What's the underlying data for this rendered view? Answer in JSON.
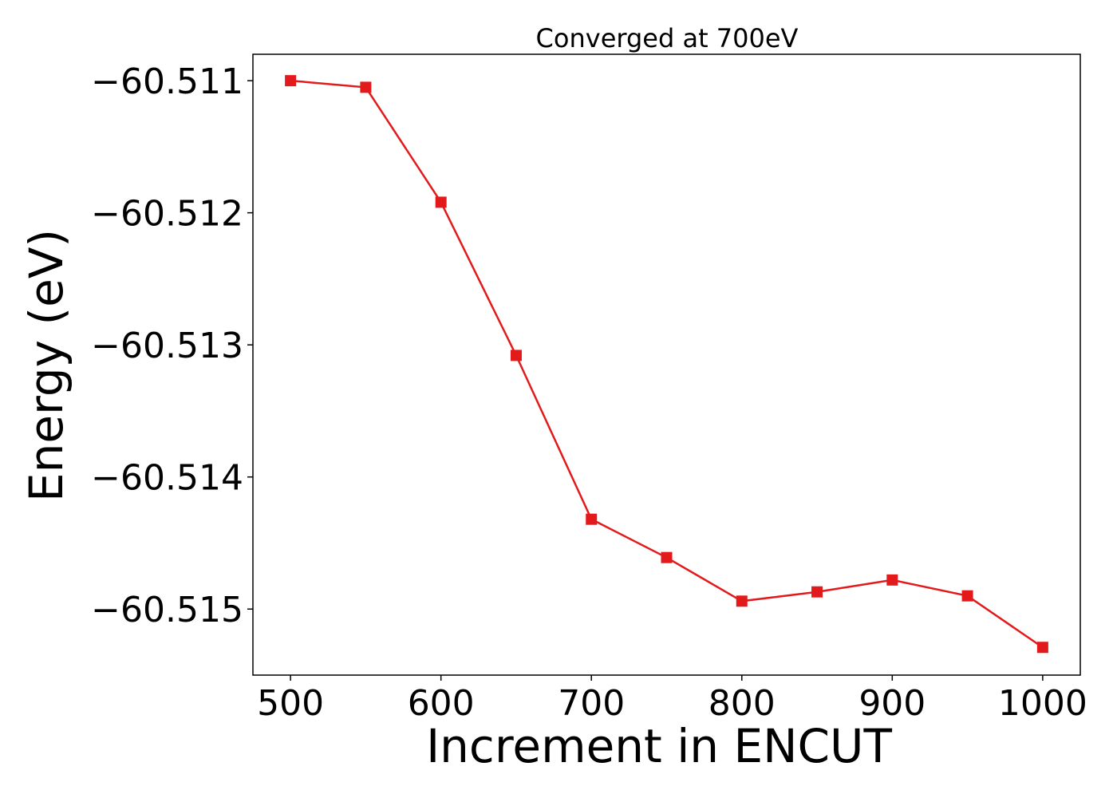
{
  "chart_data": {
    "type": "line",
    "title": "Converged at 700eV",
    "xlabel": "Increment in ENCUT",
    "ylabel": "Energy (eV)",
    "x": [
      500,
      550,
      600,
      650,
      700,
      750,
      800,
      850,
      900,
      950,
      1000
    ],
    "series": [
      {
        "values": [
          -60.511,
          -60.51105,
          -60.51192,
          -60.51308,
          -60.51432,
          -60.51461,
          -60.51494,
          -60.51487,
          -60.51478,
          -60.5149,
          -60.51529
        ],
        "color": "#e31a1c",
        "marker": "square"
      }
    ],
    "xticks": [
      500,
      600,
      700,
      800,
      900,
      1000
    ],
    "xtick_labels": [
      "500",
      "600",
      "700",
      "800",
      "900",
      "1000"
    ],
    "yticks": [
      -60.511,
      -60.512,
      -60.513,
      -60.514,
      -60.515
    ],
    "ytick_labels": [
      "−60.511",
      "−60.512",
      "−60.513",
      "−60.514",
      "−60.515"
    ],
    "xlim": [
      475,
      1025
    ],
    "ylim": [
      -60.5155,
      -60.5108
    ],
    "grid": false,
    "legend": "none"
  }
}
